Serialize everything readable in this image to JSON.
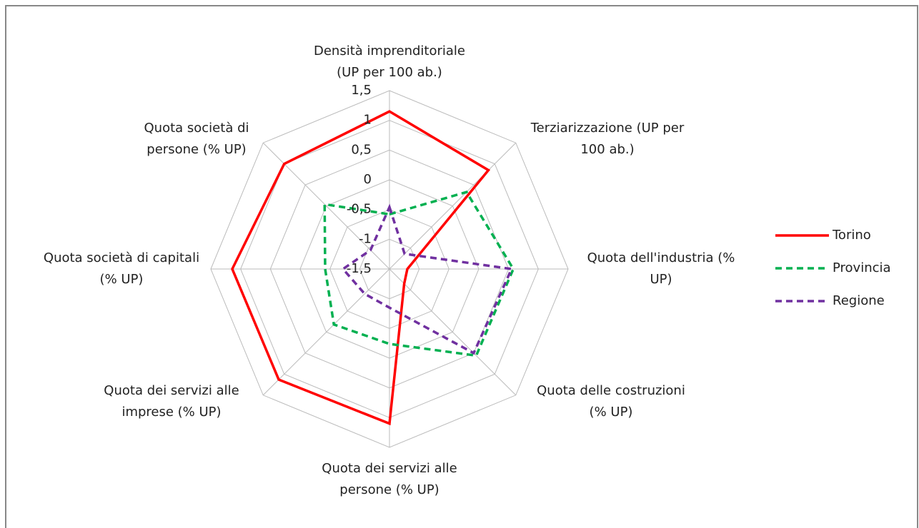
{
  "chart_data": {
    "type": "radar",
    "categories": [
      [
        "Densità imprenditoriale",
        "(UP per 100 ab.)"
      ],
      [
        "Terziarizzazione (UP per",
        "100 ab.)"
      ],
      [
        "Quota dell'industria (%",
        "UP)"
      ],
      [
        "Quota delle costruzioni",
        "(% UP)"
      ],
      [
        "Quota dei servizi alle",
        "persone (% UP)"
      ],
      [
        "Quota dei servizi alle",
        "imprese (% UP)"
      ],
      [
        "Quota società di capitali",
        "(% UP)"
      ],
      [
        "Quota società di",
        "persone (% UP)"
      ]
    ],
    "series": [
      {
        "name": "Torino",
        "color": "#ff0000",
        "dash": "solid",
        "values": [
          1.15,
          0.85,
          -1.2,
          -1.15,
          1.1,
          1.13,
          1.14,
          1.0
        ]
      },
      {
        "name": "Provincia",
        "color": "#00b050",
        "dash": "dashed",
        "values": [
          -0.58,
          0.33,
          0.58,
          0.56,
          -0.24,
          -0.18,
          -0.42,
          0.04
        ]
      },
      {
        "name": "Regione",
        "color": "#7030a0",
        "dash": "dashed",
        "values": [
          -0.46,
          -1.14,
          0.55,
          0.5,
          -0.85,
          -0.91,
          -0.72,
          -1.05
        ]
      }
    ],
    "rlim": [
      -1.5,
      1.5
    ],
    "rticks": [
      {
        "value": 1.5,
        "label": "1,5"
      },
      1,
      {
        "value": 0.5,
        "label": "0,5"
      },
      0,
      {
        "value": -0.5,
        "label": "-0,5"
      },
      -1,
      {
        "value": -1.5,
        "label": "-1,5"
      }
    ],
    "grid": true,
    "legend": "right"
  }
}
